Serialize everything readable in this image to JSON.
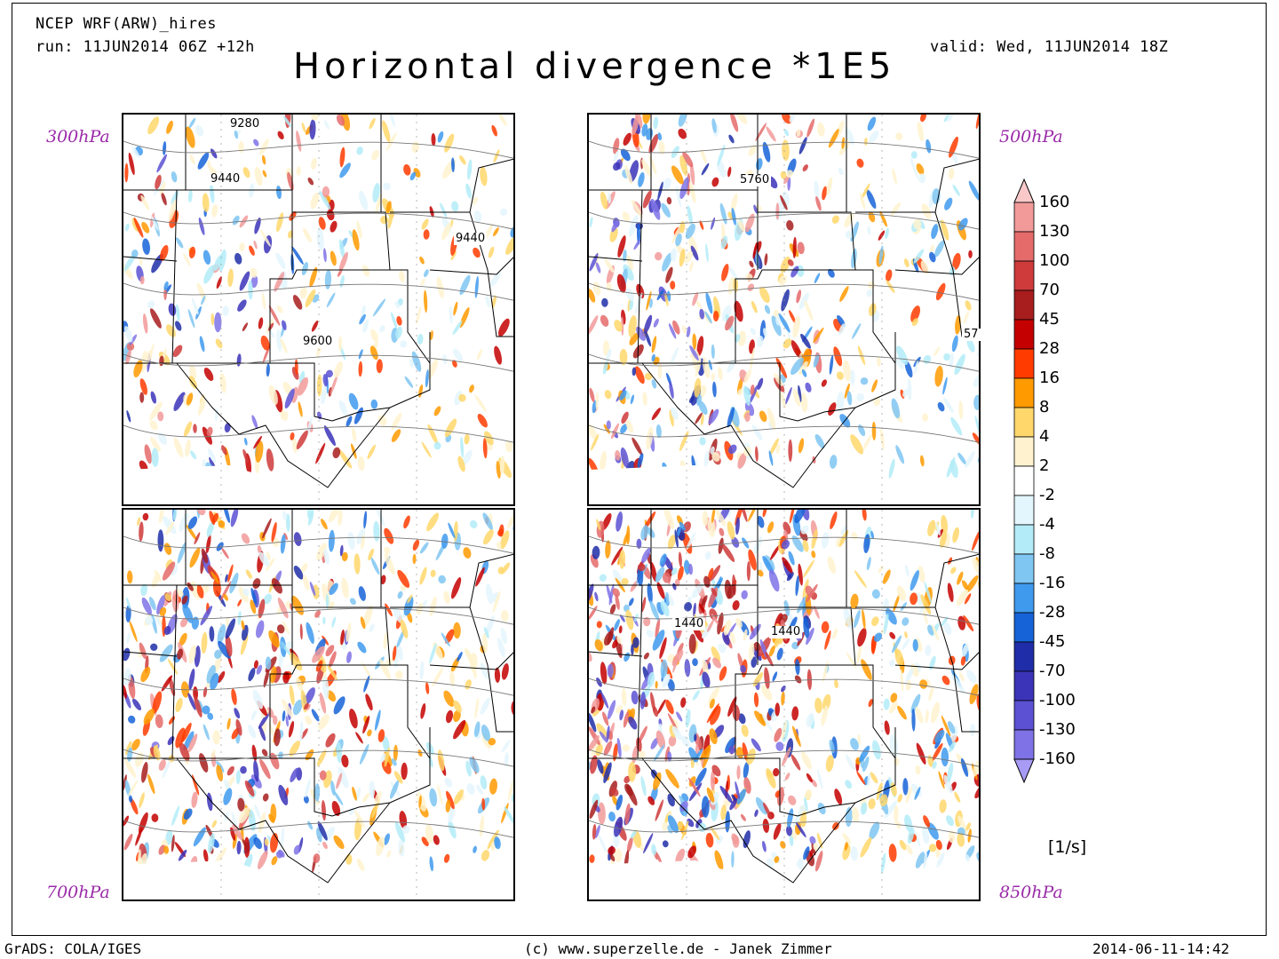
{
  "header": {
    "model": "NCEP WRF(ARW)_hires",
    "run": "run: 11JUN2014 06Z +12h",
    "valid": "valid: Wed, 11JUN2014 18Z",
    "title": "Horizontal divergence *1E5"
  },
  "panels": [
    {
      "level": "300hPa",
      "contours": [
        "9280",
        "9440",
        "9440",
        "9600"
      ]
    },
    {
      "level": "500hPa",
      "contours": [
        "5760",
        "57"
      ]
    },
    {
      "level": "700hPa",
      "contours": []
    },
    {
      "level": "850hPa",
      "contours": [
        "1440",
        "1440"
      ]
    }
  ],
  "colorbar": {
    "unit": "[1/s]",
    "labels": [
      "160",
      "130",
      "100",
      "70",
      "45",
      "28",
      "16",
      "8",
      "4",
      "2",
      "-2",
      "-4",
      "-8",
      "-16",
      "-28",
      "-45",
      "-70",
      "-100",
      "-130",
      "-160"
    ],
    "colors": [
      "#f9c9c9",
      "#f29a9a",
      "#e56b6b",
      "#cf3a3a",
      "#a81d1d",
      "#c40000",
      "#ff3b00",
      "#ff9a00",
      "#ffd76b",
      "#fff3cf",
      "#ffffff",
      "#e4f6fd",
      "#b3ecf8",
      "#7fc6f2",
      "#3f9aee",
      "#1663d8",
      "#1f2ea8",
      "#3b33b8",
      "#5b51d2",
      "#7f72e6",
      "#a79bf5"
    ]
  },
  "footer": {
    "left": "GrADS: COLA/IGES",
    "center": "(c) www.superzelle.de - Janek Zimmer",
    "right": "2014-06-11-14:42"
  }
}
